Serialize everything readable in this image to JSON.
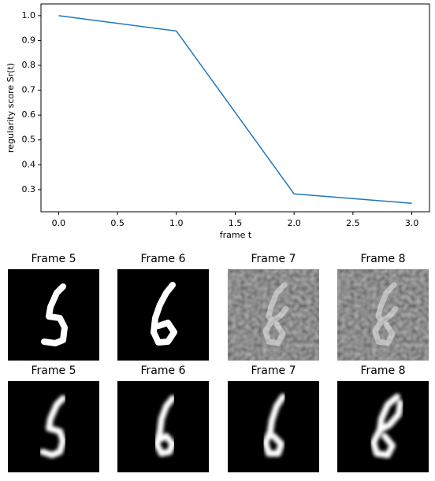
{
  "chart_data": {
    "type": "line",
    "xlabel": "frame t",
    "ylabel": "regularity score Sr(t)",
    "x": [
      0,
      1,
      2,
      3
    ],
    "values": [
      1.0,
      0.938,
      0.283,
      0.245
    ],
    "color": "#1f77b4",
    "xlim": [
      -0.15,
      3.15
    ],
    "ylim": [
      0.211,
      1.047
    ],
    "xticks": [
      {
        "value": 0,
        "label": "0.0"
      },
      0.5,
      {
        "value": 1,
        "label": "1.0"
      },
      1.5,
      {
        "value": 2,
        "label": "2.0"
      },
      2.5,
      {
        "value": 3,
        "label": "3.0"
      }
    ],
    "yticks": [
      0.3,
      0.4,
      0.5,
      0.6,
      0.7,
      0.8,
      0.9,
      {
        "value": 1,
        "label": "1.0"
      }
    ]
  },
  "panels": [
    {
      "title": "Frame 5"
    },
    {
      "title": "Frame 6"
    },
    {
      "title": "Frame 7"
    },
    {
      "title": "Frame 8"
    },
    {
      "title": "Frame 5"
    },
    {
      "title": "Frame 6"
    },
    {
      "title": "Frame 7"
    },
    {
      "title": "Frame 8"
    }
  ]
}
